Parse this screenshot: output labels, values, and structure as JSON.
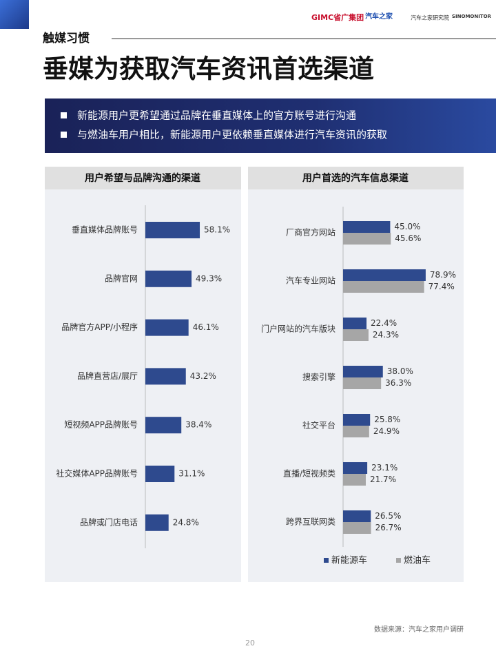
{
  "header": {
    "logos": [
      "GIMC省广集团",
      "汽车之家",
      "汽车之家研究院",
      "SINOMONITOR"
    ]
  },
  "section": "触媒习惯",
  "title": "垂媒为获取汽车资讯首选渠道",
  "bullets": [
    "新能源用户更希望通过品牌在垂直媒体上的官方账号进行沟通",
    "与燃油车用户相比，新能源用户更依赖垂直媒体进行汽车资讯的获取"
  ],
  "chart_data": [
    {
      "type": "bar",
      "orientation": "horizontal",
      "title": "用户希望与品牌沟通的渠道",
      "categories": [
        "垂直媒体品牌账号",
        "品牌官网",
        "品牌官方APP/小程序",
        "品牌直营店/展厅",
        "短视频APP品牌账号",
        "社交媒体APP品牌账号",
        "品牌或门店电话"
      ],
      "values": [
        58.1,
        49.3,
        46.1,
        43.2,
        38.4,
        31.1,
        24.8
      ],
      "value_labels": [
        "58.1%",
        "49.3%",
        "46.1%",
        "43.2%",
        "38.4%",
        "31.1%",
        "24.8%"
      ],
      "color": "#2e4a8e"
    },
    {
      "type": "bar",
      "orientation": "horizontal",
      "title": "用户首选的汽车信息渠道",
      "categories": [
        "厂商官方网站",
        "汽车专业网站",
        "门户网站的汽车版块",
        "搜索引擎",
        "社交平台",
        "直播/短视频类",
        "跨界互联网类"
      ],
      "series": [
        {
          "name": "新能源车",
          "color": "#2e4a8e",
          "values": [
            45.0,
            78.9,
            22.4,
            38.0,
            25.8,
            23.1,
            26.5
          ],
          "value_labels": [
            "45.0%",
            "78.9%",
            "22.4%",
            "38.0%",
            "25.8%",
            "23.1%",
            "26.5%"
          ]
        },
        {
          "name": "燃油车",
          "color": "#a6a6a6",
          "values": [
            45.6,
            77.4,
            24.3,
            36.3,
            24.9,
            21.7,
            26.7
          ],
          "value_labels": [
            "45.6%",
            "77.4%",
            "24.3%",
            "36.3%",
            "24.9%",
            "21.7%",
            "26.7%"
          ]
        }
      ],
      "legend": "bottom"
    }
  ],
  "source": "数据来源：汽车之家用户调研",
  "page_number": 20
}
